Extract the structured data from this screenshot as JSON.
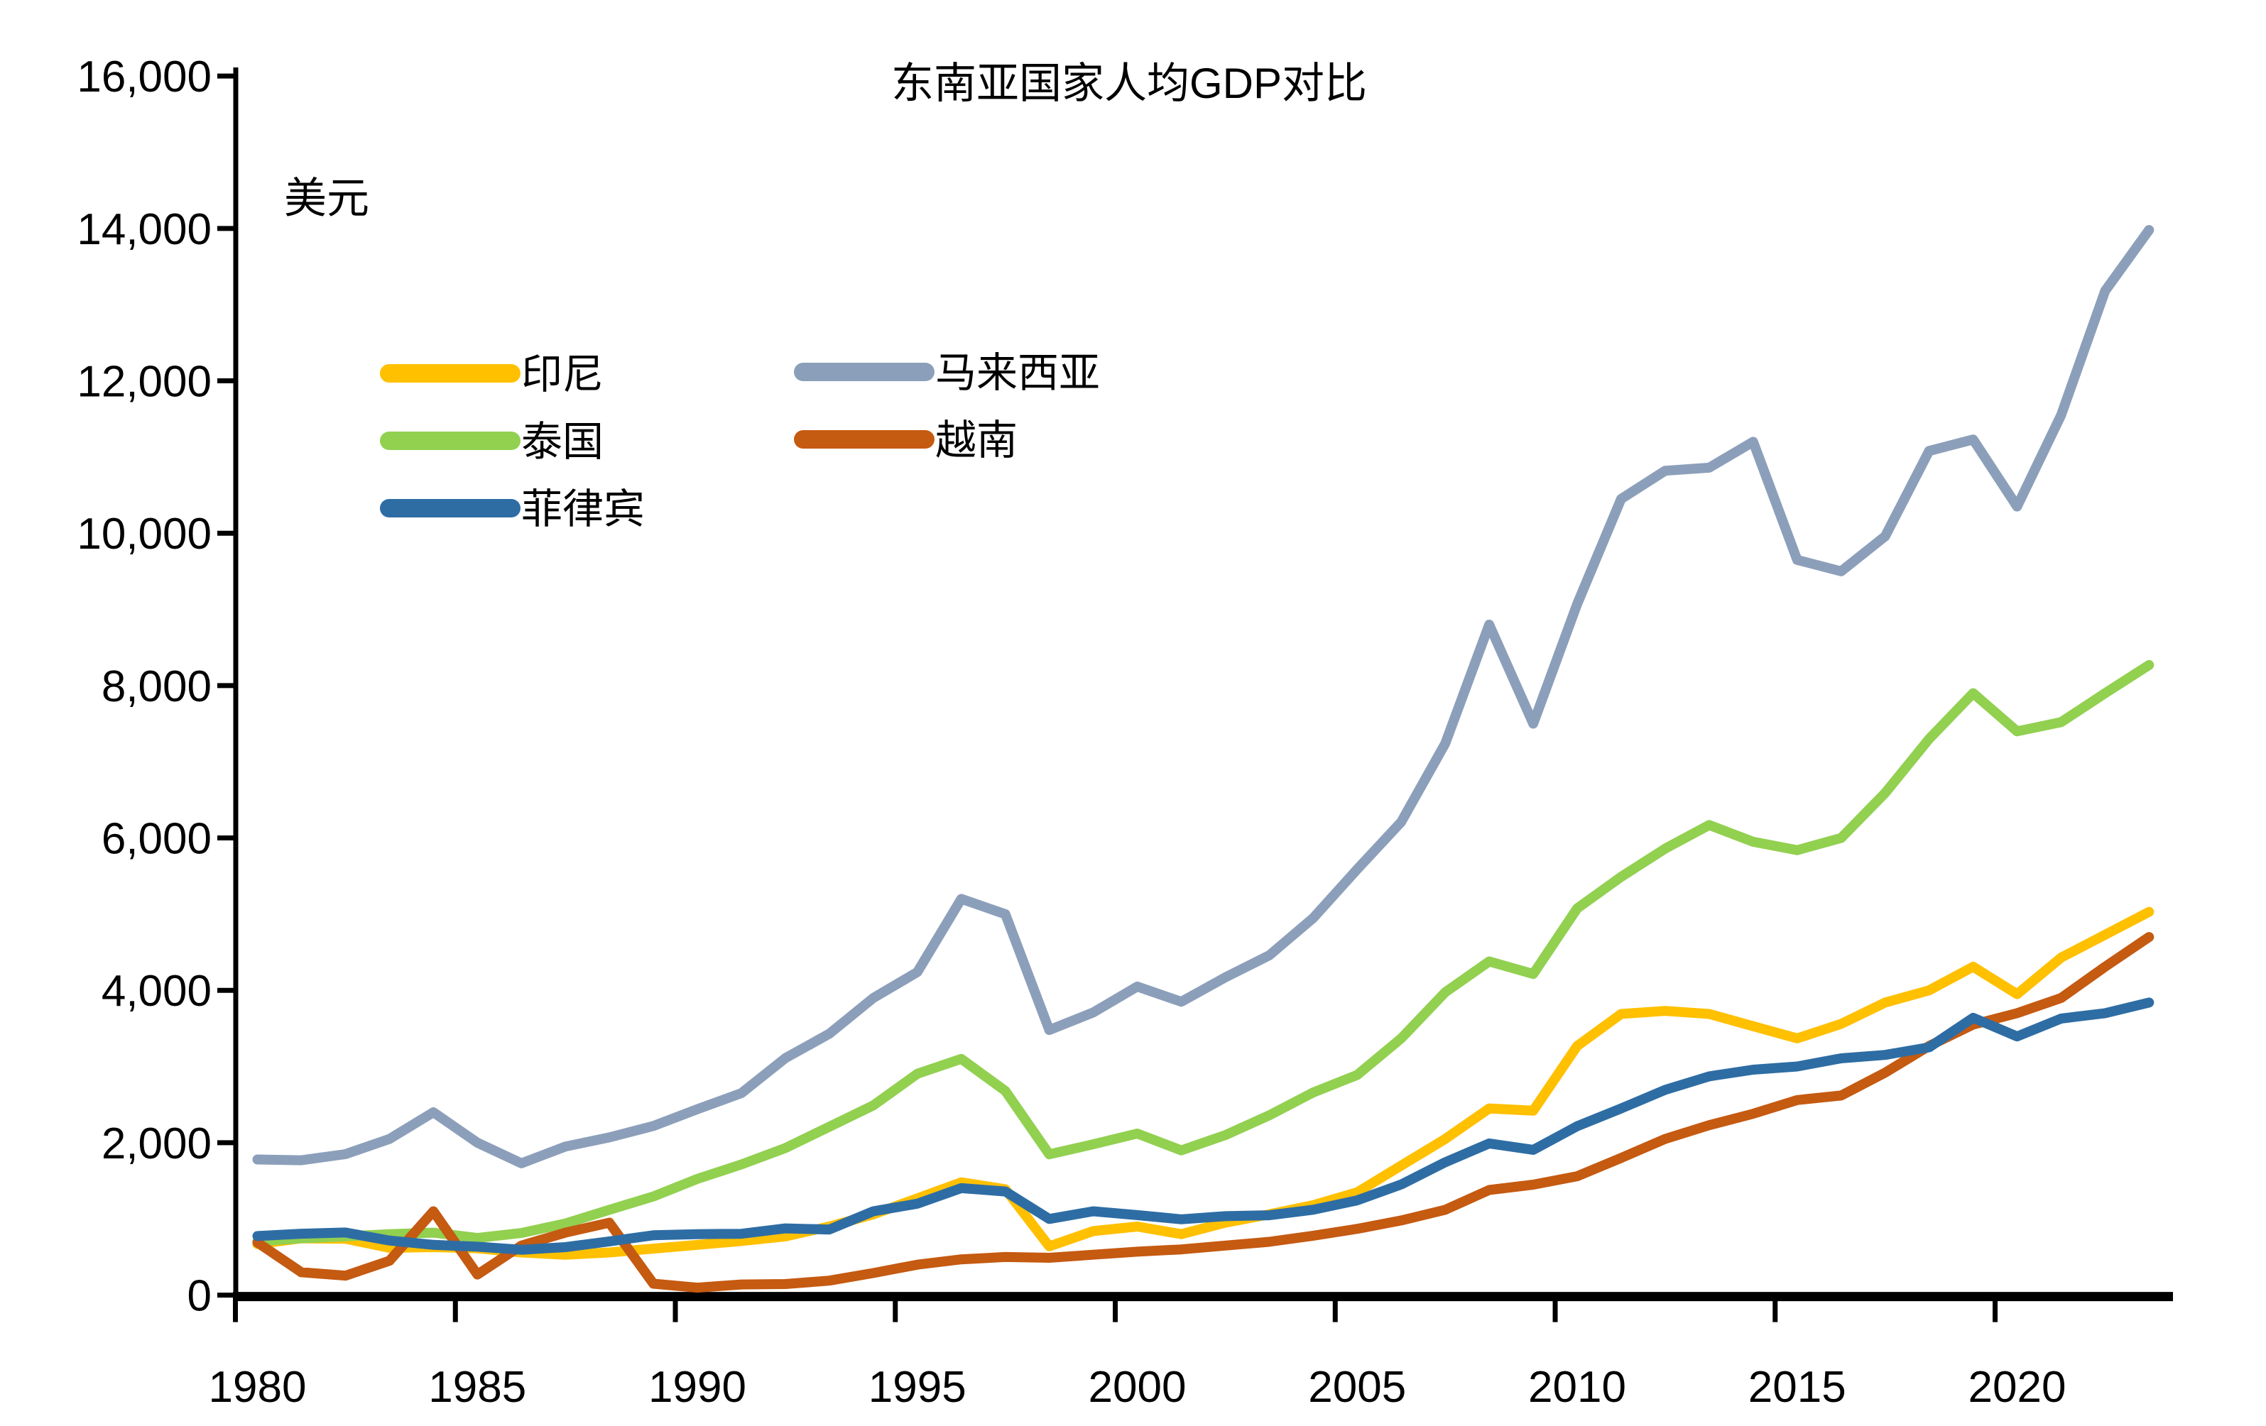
{
  "chart": {
    "title": "东南亚国家人均GDP对比",
    "unit_label": "美元",
    "background_color": "#FFFFFF",
    "text_color": "#000000"
  },
  "legend": {
    "items": [
      {
        "label": "印尼",
        "color": "#FFC000"
      },
      {
        "label": "马来西亚",
        "color": "#8C9FBA"
      },
      {
        "label": "泰国",
        "color": "#92D050"
      },
      {
        "label": "越南",
        "color": "#C55A11"
      },
      {
        "label": "菲律宾",
        "color": "#2E6DA4"
      }
    ]
  },
  "axes": {
    "y_tick_labels": [
      "16,000",
      "14,000",
      "12,000",
      "10,000",
      "8,000",
      "6,000",
      "4,000",
      "2,000",
      "0"
    ],
    "x_tick_labels": [
      "1980",
      "1985",
      "1990",
      "1995",
      "2000",
      "2005",
      "2010",
      "2015",
      "2020"
    ]
  },
  "chart_data": {
    "type": "line",
    "title": "东南亚国家人均GDP对比",
    "xlabel": "",
    "ylabel": "美元",
    "ylim": [
      0,
      16000
    ],
    "ytick_step": 2000,
    "grid": false,
    "legend_position": "upper-left, two columns",
    "x_start_year": 1980,
    "x_end_year": 2023,
    "x": [
      1980,
      1981,
      1982,
      1983,
      1984,
      1985,
      1986,
      1987,
      1988,
      1989,
      1990,
      1991,
      1992,
      1993,
      1994,
      1995,
      1996,
      1997,
      1998,
      1999,
      2000,
      2001,
      2002,
      2003,
      2004,
      2005,
      2006,
      2007,
      2008,
      2009,
      2010,
      2011,
      2012,
      2013,
      2014,
      2015,
      2016,
      2017,
      2018,
      2019,
      2020,
      2021,
      2022,
      2023
    ],
    "xtick_years": [
      1980,
      1985,
      1990,
      1995,
      2000,
      2005,
      2010,
      2015,
      2020
    ],
    "series": [
      {
        "name": "印尼",
        "name_en": "Indonesia",
        "color": "#FFC000",
        "values": [
          670,
          745,
          740,
          620,
          630,
          615,
          560,
          530,
          560,
          610,
          660,
          710,
          770,
          900,
          1060,
          1270,
          1480,
          1390,
          640,
          840,
          900,
          800,
          950,
          1060,
          1180,
          1350,
          1700,
          2050,
          2450,
          2420,
          3270,
          3690,
          3730,
          3690,
          3530,
          3370,
          3560,
          3840,
          4000,
          4310,
          3950,
          4430,
          4730,
          5030
        ]
      },
      {
        "name": "马来西亚",
        "name_en": "Malaysia",
        "color": "#8C9FBA",
        "values": [
          1780,
          1770,
          1850,
          2050,
          2400,
          2000,
          1730,
          1950,
          2070,
          2220,
          2440,
          2650,
          3110,
          3430,
          3900,
          4240,
          5200,
          5000,
          3480,
          3710,
          4050,
          3850,
          4170,
          4460,
          4950,
          5590,
          6210,
          7240,
          8800,
          7500,
          9070,
          10450,
          10820,
          10860,
          11200,
          9650,
          9500,
          9960,
          11080,
          11230,
          10350,
          11550,
          13180,
          13980
        ]
      },
      {
        "name": "泰国",
        "name_en": "Thailand",
        "color": "#92D050",
        "values": [
          705,
          745,
          770,
          800,
          820,
          750,
          815,
          940,
          1120,
          1295,
          1525,
          1715,
          1930,
          2210,
          2490,
          2905,
          3100,
          2680,
          1848,
          1980,
          2120,
          1900,
          2100,
          2360,
          2660,
          2890,
          3370,
          3975,
          4380,
          4215,
          5075,
          5490,
          5860,
          6170,
          5950,
          5840,
          6000,
          6590,
          7300,
          7900,
          7400,
          7520,
          7900,
          8270
        ]
      },
      {
        "name": "越南",
        "name_en": "Vietnam",
        "color": "#C55A11",
        "values": [
          690,
          300,
          255,
          450,
          1100,
          270,
          650,
          820,
          950,
          150,
          98,
          140,
          145,
          190,
          290,
          400,
          470,
          500,
          490,
          530,
          570,
          600,
          650,
          700,
          780,
          870,
          980,
          1120,
          1380,
          1450,
          1560,
          1800,
          2050,
          2230,
          2380,
          2560,
          2620,
          2920,
          3270,
          3550,
          3700,
          3900,
          4310,
          4700
        ]
      },
      {
        "name": "菲律宾",
        "name_en": "Philippines",
        "color": "#2E6DA4",
        "values": [
          775,
          806,
          822,
          716,
          660,
          635,
          595,
          630,
          705,
          785,
          800,
          805,
          876,
          861,
          1100,
          1200,
          1404,
          1360,
          1000,
          1100,
          1050,
          995,
          1036,
          1048,
          1121,
          1244,
          1452,
          1744,
          1991,
          1906,
          2217,
          2450,
          2694,
          2871,
          2959,
          3001,
          3108,
          3153,
          3252,
          3640,
          3395,
          3630,
          3700,
          3840
        ]
      }
    ]
  }
}
